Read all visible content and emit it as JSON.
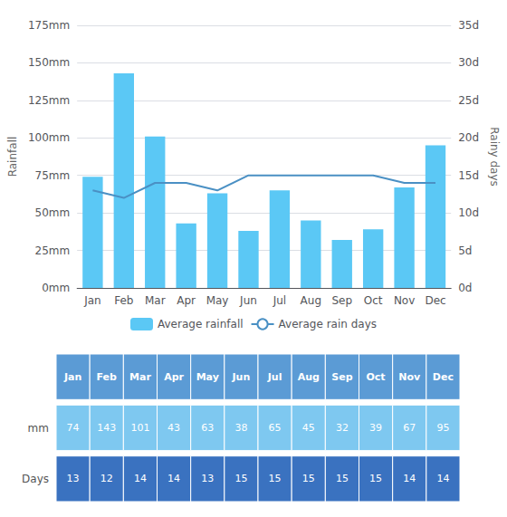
{
  "chart_data": [
    {
      "type": "bar",
      "categories": [
        "Jan",
        "Feb",
        "Mar",
        "Apr",
        "May",
        "Jun",
        "Jul",
        "Aug",
        "Sep",
        "Oct",
        "Nov",
        "Dec"
      ],
      "series": [
        {
          "name": "Average rainfall",
          "type": "bar",
          "color": "#5BC8F5",
          "values": [
            74,
            143,
            101,
            43,
            63,
            38,
            65,
            45,
            32,
            39,
            67,
            95
          ]
        },
        {
          "name": "Average rain days",
          "type": "line",
          "color": "#4a90c4",
          "axis": "y2",
          "values": [
            13,
            12,
            14,
            14,
            13,
            15,
            15,
            15,
            15,
            15,
            14,
            14
          ]
        }
      ],
      "ylabel": "Rainfall",
      "y2label": "Rainy days",
      "ylim": [
        0,
        175
      ],
      "yticks": [
        {
          "value": 0,
          "label": "0mm"
        },
        {
          "value": 25,
          "label": "25mm"
        },
        {
          "value": 50,
          "label": "50mm"
        },
        {
          "value": 75,
          "label": "75mm"
        },
        {
          "value": 100,
          "label": "100mm"
        },
        {
          "value": 125,
          "label": "125mm"
        },
        {
          "value": 150,
          "label": "150mm"
        },
        {
          "value": 175,
          "label": "175mm"
        }
      ],
      "y2lim": [
        0,
        35
      ],
      "y2ticks": [
        {
          "value": 0,
          "label": "0d"
        },
        {
          "value": 5,
          "label": "5d"
        },
        {
          "value": 10,
          "label": "10d"
        },
        {
          "value": 15,
          "label": "15d"
        },
        {
          "value": 20,
          "label": "20d"
        },
        {
          "value": 25,
          "label": "25d"
        },
        {
          "value": 30,
          "label": "30d"
        },
        {
          "value": 35,
          "label": "35d"
        }
      ],
      "grid": true,
      "legend": "bottom"
    },
    {
      "type": "table",
      "categories": [
        "Jan",
        "Feb",
        "Mar",
        "Apr",
        "May",
        "Jun",
        "Jul",
        "Aug",
        "Sep",
        "Oct",
        "Nov",
        "Dec"
      ],
      "color": "#5b9bd5",
      "series": [
        {
          "name": "mm",
          "color": "#7ec8f0",
          "values": [
            74,
            143,
            101,
            43,
            63,
            38,
            65,
            45,
            32,
            39,
            67,
            95
          ]
        },
        {
          "name": "Days",
          "color": "#3a72c0",
          "values": [
            13,
            12,
            14,
            14,
            13,
            15,
            15,
            15,
            15,
            15,
            14,
            14
          ]
        }
      ]
    }
  ]
}
